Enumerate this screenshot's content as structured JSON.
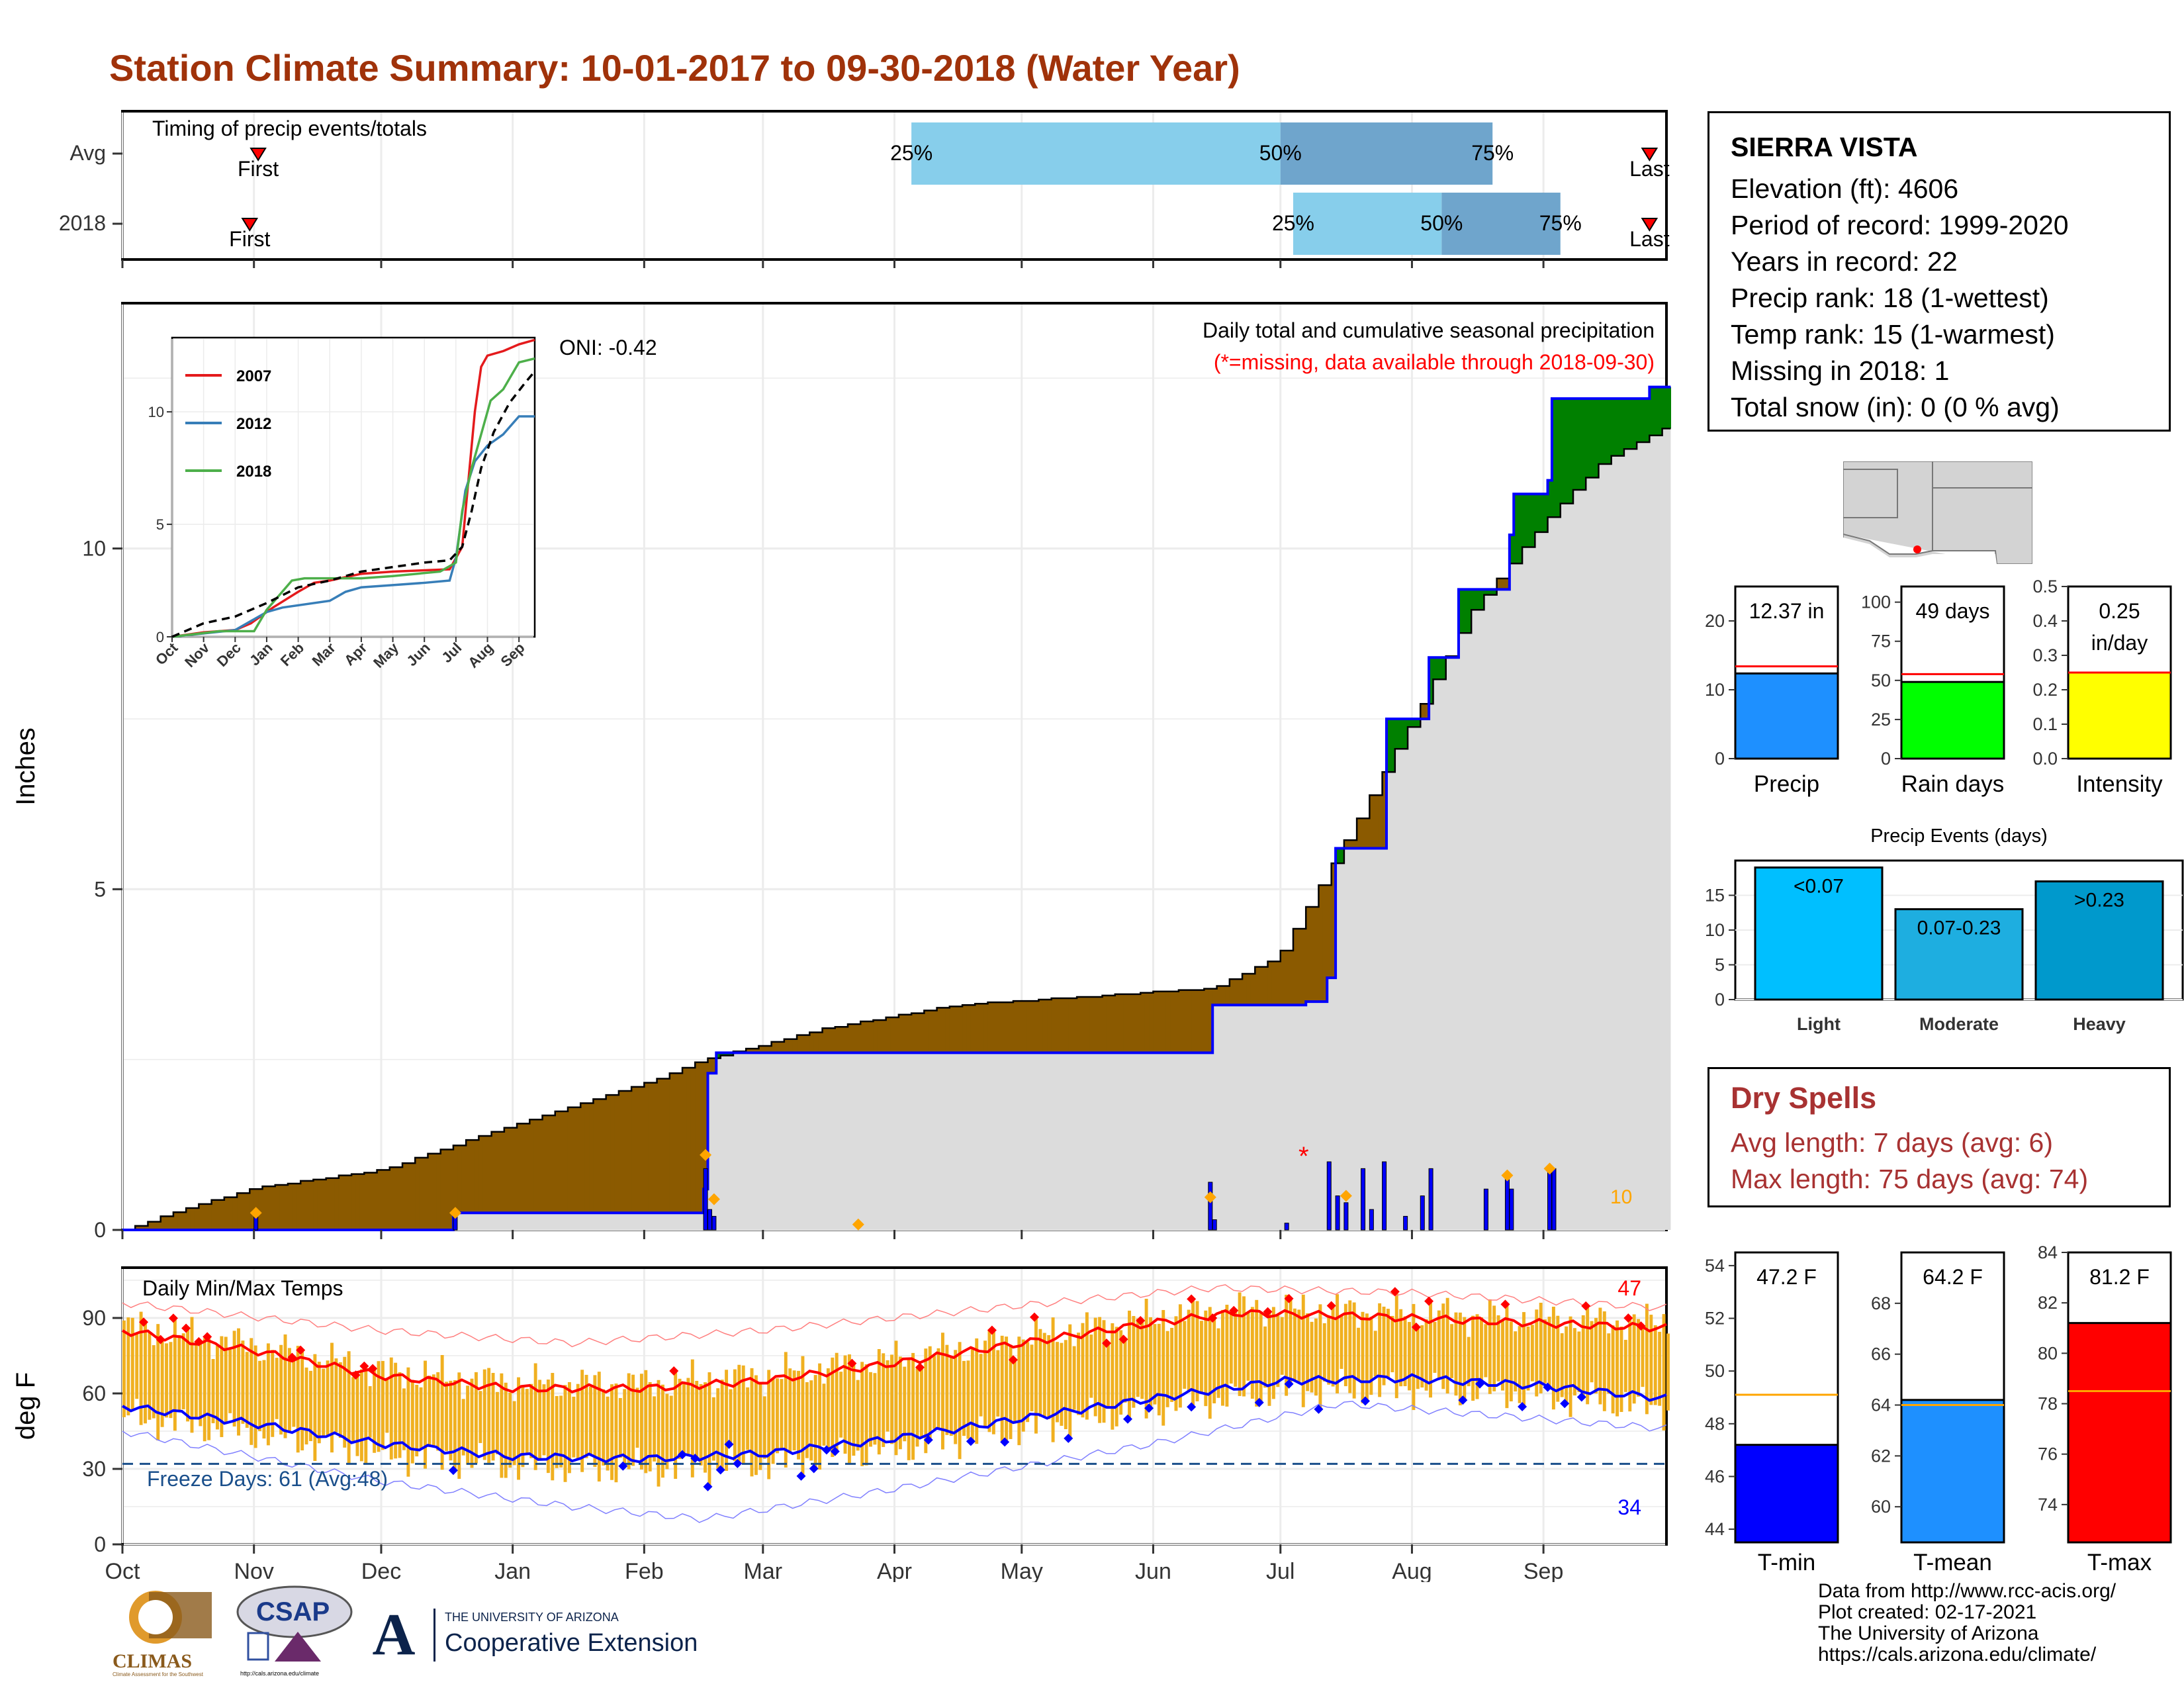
{
  "title": "Station Climate Summary: 10-01-2017 to 09-30-2018 (Water Year)",
  "timing": {
    "label": "Timing of precip events/totals",
    "rows": [
      {
        "name": "Avg",
        "first_date": "2017-11-02",
        "last_date": "2018-09-26",
        "p25": "2018-04-05",
        "p50": "2018-07-01",
        "p75": "2018-08-20"
      },
      {
        "name": "2018",
        "first_date": "2017-10-31",
        "last_date": "2018-09-26",
        "p25": "2018-07-04",
        "p50": "2018-08-08",
        "p75": "2018-09-05"
      }
    ],
    "first_label": "First",
    "last_label": "Last",
    "pct_labels": [
      "25%",
      "50%",
      "75%"
    ],
    "colors": {
      "p25_bar": "#87ceeb",
      "p75_bar": "#6fa5cc",
      "marker": "#ff0000"
    }
  },
  "precip": {
    "ylabel": "Inches",
    "header": "Daily total and cumulative seasonal precipitation",
    "subheader": "(*=missing, data available through 2018-09-30)",
    "oni": "ONI: -0.42",
    "count_label": "10",
    "yticks": [
      "0",
      "5",
      "10"
    ],
    "colors": {
      "below_avg": "#8b5a00",
      "above_avg": "#008000",
      "observed_line": "#0000ff",
      "avg_fill": "#dcdcdc",
      "daily_bars": "#0000ff",
      "extreme_marker": "#ffa500",
      "missing": "#ff0000"
    }
  },
  "chart_data": [
    {
      "type": "area",
      "title": "Daily total and cumulative seasonal precipitation",
      "ylabel": "Inches",
      "ylim": [
        0,
        13.6
      ],
      "x_domain": [
        "2017-10-01",
        "2018-09-30"
      ],
      "series": [
        {
          "name": "Observed cumulative (2018)",
          "x": [
            "2017-10-01",
            "2017-11-01",
            "2017-12-18",
            "2017-12-19",
            "2018-02-15",
            "2018-02-16",
            "2018-02-18",
            "2018-06-14",
            "2018-06-15",
            "2018-07-07",
            "2018-07-12",
            "2018-07-14",
            "2018-07-25",
            "2018-07-26",
            "2018-08-03",
            "2018-08-05",
            "2018-08-12",
            "2018-08-20",
            "2018-08-24",
            "2018-08-25",
            "2018-09-02",
            "2018-09-03",
            "2018-09-26",
            "2018-09-30"
          ],
          "y": [
            0,
            0,
            0.25,
            0.25,
            0.6,
            2.3,
            2.6,
            2.6,
            3.3,
            3.35,
            3.7,
            5.6,
            5.6,
            7.5,
            7.5,
            8.4,
            9.4,
            9.4,
            10.2,
            10.8,
            11.0,
            12.2,
            12.37,
            12.37
          ]
        },
        {
          "name": "Average cumulative",
          "x": [
            "2017-10-01",
            "2017-10-15",
            "2017-11-01",
            "2017-12-01",
            "2018-01-01",
            "2018-02-01",
            "2018-02-15",
            "2018-03-15",
            "2018-04-15",
            "2018-05-15",
            "2018-06-15",
            "2018-06-30",
            "2018-07-15",
            "2018-08-01",
            "2018-08-15",
            "2018-09-01",
            "2018-09-15",
            "2018-09-30"
          ],
          "y": [
            0,
            0.3,
            0.62,
            0.88,
            1.55,
            2.15,
            2.5,
            2.95,
            3.3,
            3.42,
            3.55,
            4.0,
            5.6,
            7.5,
            9.1,
            10.4,
            11.3,
            11.8
          ]
        },
        {
          "name": "Daily precipitation",
          "x": [
            "2017-11-01",
            "2017-12-18",
            "2018-02-15",
            "2018-02-16",
            "2018-02-17",
            "2018-06-14",
            "2018-06-15",
            "2018-07-02",
            "2018-07-12",
            "2018-07-14",
            "2018-07-16",
            "2018-07-20",
            "2018-07-22",
            "2018-07-25",
            "2018-07-30",
            "2018-08-03",
            "2018-08-05",
            "2018-08-18",
            "2018-08-23",
            "2018-08-24",
            "2018-09-02",
            "2018-09-03"
          ],
          "y": [
            0.25,
            0.25,
            0.9,
            0.3,
            0.2,
            0.7,
            0.15,
            0.1,
            1.0,
            0.5,
            0.4,
            0.9,
            0.3,
            1.0,
            0.2,
            0.5,
            0.9,
            0.6,
            0.8,
            0.6,
            0.9,
            0.9
          ]
        }
      ],
      "missing": [
        "2018-07-06"
      ]
    },
    {
      "type": "line",
      "ylim": [
        0,
        13.3
      ],
      "categories": [
        "Oct",
        "Nov",
        "Dec",
        "Jan",
        "Feb",
        "Mar",
        "Apr",
        "May",
        "Jun",
        "Jul",
        "Aug",
        "Sep"
      ],
      "yticks": [
        "0",
        "5",
        "10"
      ],
      "series": [
        {
          "name": "2007",
          "color": "#e41a1c",
          "x": [
            0,
            1,
            2,
            2.5,
            3.2,
            4,
            4.5,
            5,
            6,
            7,
            8.8,
            9.2,
            9.4,
            9.6,
            9.8,
            10,
            10.5,
            11,
            11.5
          ],
          "y": [
            0,
            0.2,
            0.3,
            0.6,
            1.3,
            2.0,
            2.4,
            2.5,
            2.8,
            2.9,
            3.0,
            4.0,
            7.0,
            10.0,
            12.0,
            12.5,
            12.7,
            13.0,
            13.2
          ]
        },
        {
          "name": "2012",
          "color": "#377eb8",
          "x": [
            0,
            1,
            2,
            3,
            3.5,
            5,
            5.5,
            6,
            7,
            8,
            8.8,
            9,
            9.3,
            9.6,
            10,
            10.5,
            11,
            11.5
          ],
          "y": [
            0,
            0.15,
            0.3,
            1.1,
            1.3,
            1.6,
            2.0,
            2.2,
            2.3,
            2.4,
            2.5,
            3.5,
            6.5,
            7.8,
            8.5,
            9.0,
            9.8,
            9.8
          ]
        },
        {
          "name": "2018",
          "color": "#4daf4a",
          "x": [
            0,
            1.5,
            2.6,
            3,
            3.8,
            4.2,
            5,
            6,
            7,
            8.5,
            9,
            9.2,
            9.5,
            9.8,
            10.1,
            10.5,
            11,
            11.5
          ],
          "y": [
            0,
            0.25,
            0.25,
            1.2,
            2.5,
            2.6,
            2.6,
            2.6,
            2.7,
            2.9,
            3.3,
            5.6,
            7.5,
            9.0,
            10.5,
            11.0,
            12.2,
            12.37
          ]
        },
        {
          "name": "Average",
          "color": "#000000",
          "x": [
            0,
            1,
            2,
            3,
            4,
            5,
            6,
            7,
            8,
            8.8,
            9.2,
            9.5,
            9.8,
            10.2,
            10.7,
            11.2,
            11.5
          ],
          "y": [
            0,
            0.6,
            0.9,
            1.5,
            2.2,
            2.5,
            2.9,
            3.1,
            3.3,
            3.4,
            4.0,
            5.6,
            7.5,
            9.1,
            10.4,
            11.3,
            11.8
          ]
        }
      ]
    },
    {
      "type": "line",
      "title": "Daily Min/Max Temps",
      "ylabel": "deg F",
      "ylim": [
        0,
        110
      ],
      "yticks": [
        "0",
        "30",
        "60",
        "90"
      ],
      "x_domain": [
        "2017-10-01",
        "2018-09-30"
      ],
      "series": [
        {
          "name": "Avg max",
          "color": "#ff0000",
          "x": [
            "2017-10-01",
            "2017-11-01",
            "2017-12-01",
            "2018-01-01",
            "2018-02-01",
            "2018-03-01",
            "2018-04-01",
            "2018-05-01",
            "2018-06-01",
            "2018-06-20",
            "2018-07-15",
            "2018-08-15",
            "2018-09-30"
          ],
          "y": [
            85,
            77,
            67,
            62,
            62,
            65,
            72,
            80,
            88,
            92,
            91,
            89,
            86
          ]
        },
        {
          "name": "Avg min",
          "color": "#0000ff",
          "x": [
            "2017-10-01",
            "2017-11-01",
            "2017-12-01",
            "2018-01-01",
            "2018-02-01",
            "2018-03-01",
            "2018-04-01",
            "2018-05-01",
            "2018-06-01",
            "2018-07-01",
            "2018-08-01",
            "2018-09-01",
            "2018-09-30"
          ],
          "y": [
            55,
            48,
            40,
            35,
            34,
            36,
            42,
            50,
            58,
            65,
            66,
            63,
            58
          ]
        },
        {
          "name": "Record max",
          "color": "#ff8080",
          "x": [
            "2017-10-01",
            "2017-12-01",
            "2018-01-15",
            "2018-03-01",
            "2018-05-01",
            "2018-06-15",
            "2018-08-01",
            "2018-09-30"
          ],
          "y": [
            96,
            85,
            80,
            85,
            95,
            102,
            100,
            94
          ]
        },
        {
          "name": "Record min",
          "color": "#8080ff",
          "x": [
            "2017-10-01",
            "2017-12-01",
            "2018-01-15",
            "2018-02-15",
            "2018-04-01",
            "2018-06-01",
            "2018-07-15",
            "2018-09-30"
          ],
          "y": [
            45,
            25,
            15,
            10,
            22,
            40,
            56,
            46
          ]
        }
      ],
      "freeze_line": 32,
      "max_count_label": "47",
      "min_count_label": "34"
    },
    {
      "type": "bar",
      "categories": [
        "Precip",
        "Rain days",
        "Intensity"
      ],
      "values": [
        12.37,
        49,
        0.25
      ],
      "averages": [
        13.4,
        54,
        0.25
      ],
      "ylims": [
        [
          0,
          25
        ],
        [
          0,
          110
        ],
        [
          0,
          0.5
        ]
      ]
    },
    {
      "type": "bar",
      "title": "Precip Events (days)",
      "categories": [
        "Light",
        "Moderate",
        "Heavy"
      ],
      "values": [
        19,
        13,
        17
      ],
      "ylim": [
        0,
        20
      ]
    },
    {
      "type": "bar",
      "categories": [
        "T-min",
        "T-mean",
        "T-max"
      ],
      "values": [
        47.2,
        64.2,
        81.2
      ],
      "averages": [
        49.1,
        64.0,
        78.5
      ],
      "ylims": [
        [
          43.5,
          54.5
        ],
        [
          58.6,
          70.0
        ],
        [
          72.5,
          84.0
        ]
      ]
    }
  ],
  "inset": {
    "legend": [
      "2007",
      "2012",
      "2018"
    ],
    "xticks": [
      "Oct",
      "Nov",
      "Dec",
      "Jan",
      "Feb",
      "Mar",
      "Apr",
      "May",
      "Jun",
      "Jul",
      "Aug",
      "Sep"
    ],
    "yticks": [
      "0",
      "5",
      "10"
    ]
  },
  "temps": {
    "title": "Daily Min/Max Temps",
    "ylabel": "deg F",
    "freeze": "Freeze Days: 61 (Avg:48)",
    "max_count": "47",
    "min_count": "34",
    "xticks": [
      "Oct",
      "Nov",
      "Dec",
      "Jan",
      "Feb",
      "Mar",
      "Apr",
      "May",
      "Jun",
      "Jul",
      "Aug",
      "Sep"
    ],
    "yticks": [
      "0",
      "30",
      "60",
      "90"
    ],
    "colors": {
      "range_bars": "#f0b020",
      "hot_marker": "#ff0000",
      "cold_marker": "#0000ff",
      "freeze_line": "#1a4f8b"
    }
  },
  "station": {
    "name": "SIERRA VISTA",
    "lines": [
      "Elevation (ft): 4606",
      "Period of record: 1999-2020",
      "Years in record: 22",
      "Precip rank: 18 (1-wettest)",
      "Temp rank: 15 (1-warmest)",
      "Missing in 2018: 1",
      "Total snow (in): 0 (0 % avg)"
    ]
  },
  "mini_bars": {
    "precip": {
      "value_label": "12.37 in",
      "label": "Precip",
      "yticks": [
        "0",
        "10",
        "20"
      ],
      "color": "#1e90ff"
    },
    "rain_days": {
      "value_label": "49 days",
      "label": "Rain days",
      "yticks": [
        "0",
        "25",
        "50",
        "75",
        "100"
      ],
      "color": "#00ff00"
    },
    "intensity": {
      "value_label_1": "0.25",
      "value_label_2": "in/day",
      "label": "Intensity",
      "yticks": [
        "0.0",
        "0.1",
        "0.2",
        "0.3",
        "0.4",
        "0.5"
      ],
      "color": "#ffff00"
    }
  },
  "events": {
    "title": "Precip Events (days)",
    "bar_labels": [
      "<0.07",
      "0.07-0.23",
      ">0.23"
    ],
    "categories": [
      "Light",
      "Moderate",
      "Heavy"
    ],
    "yticks": [
      "0",
      "5",
      "10",
      "15"
    ],
    "colors": [
      "#00bfff",
      "#1eaee0",
      "#0099cc"
    ]
  },
  "dry": {
    "title": "Dry Spells",
    "avg": "Avg length: 7 days (avg: 6)",
    "max": "Max length: 75 days (avg: 74)"
  },
  "temp_bars": {
    "tmin": {
      "value_label": "47.2 F",
      "label": "T-min",
      "yticks": [
        "44",
        "46",
        "48",
        "50",
        "52",
        "54"
      ],
      "color": "#0000ff"
    },
    "tmean": {
      "value_label": "64.2 F",
      "label": "T-mean",
      "yticks": [
        "60",
        "62",
        "64",
        "66",
        "68"
      ],
      "color": "#1e90ff"
    },
    "tmax": {
      "value_label": "81.2 F",
      "label": "T-max",
      "yticks": [
        "74",
        "76",
        "78",
        "80",
        "82",
        "84"
      ],
      "color": "#ff0000"
    },
    "avg_color": "#ffa500"
  },
  "logos": {
    "climas": "CLIMAS",
    "climas_sub": "Climate Assessment for the Southwest",
    "csap": "CSAP",
    "csap_sub": "http://cals.arizona.edu/climate",
    "ua_letter": "A",
    "ua_line1": "THE UNIVERSITY OF ARIZONA",
    "ua_line2": "Cooperative Extension"
  },
  "credits": [
    "Data from http://www.rcc-acis.org/",
    "Plot created: 02-17-2021",
    "The University of Arizona",
    "https://cals.arizona.edu/climate/"
  ]
}
